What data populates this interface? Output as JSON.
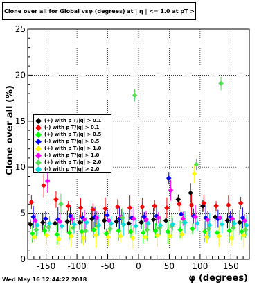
{
  "chart_data": {
    "type": "scatter",
    "title": "Clone  over all for Global vsφ (degrees) at | η | <= 1.0 at pT > 0.11",
    "xlabel": "φ (degrees)",
    "ylabel": "Clone  over all (%)",
    "xlim": [
      -180,
      180
    ],
    "ylim": [
      0,
      25
    ],
    "x_ticks": [
      -150,
      -100,
      -50,
      0,
      50,
      100,
      150
    ],
    "y_ticks": [
      0,
      5,
      10,
      15,
      20,
      25
    ],
    "grid": true,
    "legend_position": "left",
    "series": [
      {
        "name": "(+) with p T/|q| > 0.1",
        "color": "#000000",
        "x": [
          -170,
          -150,
          -130,
          -110,
          -90,
          -70,
          -50,
          -30,
          -10,
          10,
          30,
          50,
          70,
          90,
          110,
          130,
          150,
          170
        ],
        "y": [
          3.8,
          4.0,
          3.9,
          4.1,
          4.0,
          4.4,
          4.2,
          4.1,
          3.9,
          4.0,
          4.3,
          4.2,
          6.5,
          7.2,
          5.8,
          4.6,
          4.2,
          4.0
        ]
      },
      {
        "name": "(-) with p T/|q| > 0.1",
        "color": "#ff0000",
        "x": [
          -170,
          -150,
          -130,
          -110,
          -90,
          -70,
          -50,
          -30,
          -10,
          10,
          30,
          50,
          70,
          90,
          110,
          130,
          150,
          170
        ],
        "y": [
          6.2,
          8.0,
          6.5,
          5.8,
          5.6,
          5.4,
          5.5,
          5.7,
          5.6,
          5.7,
          5.8,
          5.6,
          6.0,
          5.9,
          6.1,
          5.8,
          5.9,
          6.1
        ]
      },
      {
        "name": "(+) with p T/|q| > 0.5",
        "color": "#00ff00",
        "x": [
          -170,
          -150,
          -130,
          -110,
          -90,
          -70,
          -50,
          -30,
          -10,
          10,
          30,
          50,
          70,
          90,
          110,
          130,
          150,
          170
        ],
        "y": [
          2.8,
          3.1,
          2.7,
          2.9,
          3.0,
          3.2,
          2.8,
          3.1,
          3.0,
          2.9,
          3.1,
          3.0,
          3.2,
          3.3,
          3.0,
          2.9,
          3.1,
          3.0
        ]
      },
      {
        "name": "(-) with p T/|q| > 0.5",
        "color": "#0000ff",
        "x": [
          -170,
          -150,
          -130,
          -110,
          -90,
          -70,
          -50,
          -30,
          -10,
          10,
          30,
          50,
          70,
          90,
          110,
          130,
          150,
          170
        ],
        "y": [
          4.6,
          4.4,
          4.3,
          4.7,
          4.5,
          4.6,
          4.8,
          4.4,
          4.5,
          4.6,
          4.7,
          8.8,
          4.9,
          4.7,
          4.5,
          4.4,
          4.6,
          4.5
        ]
      },
      {
        "name": "(+) with p T/|q| > 1.0",
        "color": "#ffff00",
        "x": [
          -170,
          -150,
          -130,
          -110,
          -90,
          -70,
          -50,
          -30,
          -10,
          10,
          30,
          50,
          70,
          90,
          110,
          130,
          150,
          170
        ],
        "y": [
          2.4,
          2.6,
          2.2,
          2.5,
          2.3,
          2.6,
          2.4,
          2.5,
          2.3,
          2.4,
          2.6,
          2.5,
          2.7,
          9.3,
          2.4,
          2.5,
          2.3,
          2.6
        ]
      },
      {
        "name": "(-) with p T/|q| > 1.0",
        "color": "#ff00ff",
        "x": [
          -170,
          -150,
          -130,
          -110,
          -90,
          -70,
          -50,
          -30,
          -10,
          10,
          30,
          50,
          70,
          90,
          110,
          130,
          150,
          170
        ],
        "y": [
          4.2,
          8.5,
          4.1,
          4.4,
          4.3,
          4.5,
          4.2,
          4.6,
          4.4,
          4.3,
          4.5,
          7.5,
          4.4,
          4.6,
          4.3,
          4.5,
          4.4,
          4.2
        ]
      },
      {
        "name": "(+) with p T/|q| > 2.0",
        "color": "#55dd55",
        "x": [
          -170,
          -150,
          -130,
          -110,
          -90,
          -70,
          -50,
          -30,
          -10,
          10,
          30,
          50,
          70,
          90,
          110,
          130,
          150,
          170
        ],
        "y": [
          3.2,
          3.5,
          6.0,
          3.4,
          3.1,
          3.6,
          3.3,
          4.5,
          17.8,
          3.2,
          3.4,
          3.6,
          4.0,
          10.3,
          3.3,
          19.1,
          3.4,
          3.2
        ]
      },
      {
        "name": "(-) with p T/|q| > 2.0",
        "color": "#00dddd",
        "x": [
          -170,
          -150,
          -130,
          -110,
          -90,
          -70,
          -50,
          -30,
          -10,
          10,
          30,
          50,
          70,
          90,
          110,
          130,
          150,
          170
        ],
        "y": [
          3.7,
          3.9,
          3.6,
          3.8,
          4.0,
          3.7,
          3.9,
          3.8,
          3.6,
          3.9,
          3.7,
          3.8,
          4.0,
          3.9,
          3.7,
          3.8,
          3.9,
          3.7
        ]
      }
    ]
  },
  "timestamp": "Wed May 16 12:44:22 2018"
}
